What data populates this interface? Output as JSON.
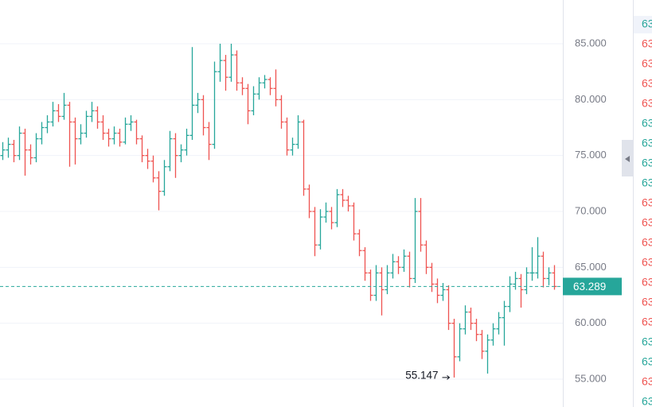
{
  "chart_data": {
    "type": "ohlc",
    "up_color": "#26a69a",
    "down_color": "#ef5350",
    "grid": true,
    "ylim": [
      52.51,
      88.91
    ],
    "yticks": [
      {
        "value": 55,
        "label": "55.000"
      },
      {
        "value": 60,
        "label": "60.000"
      },
      {
        "value": 65,
        "label": "65.000"
      },
      {
        "value": 70,
        "label": "70.000"
      },
      {
        "value": 75,
        "label": "75.000"
      },
      {
        "value": 80,
        "label": "80.000"
      },
      {
        "value": 85,
        "label": "85.000"
      }
    ],
    "bars": [
      [
        75.0,
        76.2,
        74.6,
        75.5
      ],
      [
        75.5,
        76.6,
        74.8,
        76.0
      ],
      [
        76.0,
        76.4,
        74.4,
        75.0
      ],
      [
        75.0,
        77.6,
        74.6,
        77.0
      ],
      [
        77.0,
        77.4,
        73.2,
        75.5
      ],
      [
        75.5,
        76.0,
        74.2,
        74.8
      ],
      [
        74.8,
        77.0,
        74.4,
        76.5
      ],
      [
        76.5,
        78.0,
        76.0,
        77.5
      ],
      [
        77.5,
        78.6,
        77.0,
        78.0
      ],
      [
        78.0,
        79.8,
        77.6,
        79.0
      ],
      [
        79.0,
        79.6,
        78.0,
        78.5
      ],
      [
        78.5,
        80.6,
        78.2,
        79.5
      ],
      [
        79.5,
        79.8,
        74.0,
        78.0
      ],
      [
        78.0,
        78.4,
        74.2,
        76.5
      ],
      [
        76.5,
        77.8,
        76.0,
        77.0
      ],
      [
        77.0,
        79.0,
        76.6,
        78.5
      ],
      [
        78.5,
        79.8,
        78.0,
        79.0
      ],
      [
        79.0,
        79.4,
        77.4,
        78.0
      ],
      [
        78.0,
        78.6,
        76.4,
        77.0
      ],
      [
        77.0,
        77.4,
        75.8,
        76.5
      ],
      [
        76.5,
        77.6,
        76.0,
        77.0
      ],
      [
        77.0,
        77.4,
        75.8,
        76.2
      ],
      [
        76.2,
        78.4,
        76.0,
        77.8
      ],
      [
        77.8,
        78.6,
        77.2,
        78.0
      ],
      [
        78.0,
        78.2,
        76.0,
        76.5
      ],
      [
        76.5,
        76.8,
        74.4,
        75.0
      ],
      [
        75.0,
        75.6,
        73.8,
        74.5
      ],
      [
        74.5,
        75.0,
        72.6,
        73.0
      ],
      [
        73.0,
        73.6,
        70.1,
        71.8
      ],
      [
        71.8,
        74.6,
        71.4,
        74.0
      ],
      [
        74.0,
        77.2,
        73.6,
        76.5
      ],
      [
        76.5,
        77.0,
        73.0,
        75.0
      ],
      [
        75.0,
        76.0,
        74.4,
        75.5
      ],
      [
        75.5,
        77.4,
        75.0,
        76.8
      ],
      [
        76.8,
        84.7,
        76.4,
        79.5
      ],
      [
        79.5,
        80.6,
        78.8,
        80.0
      ],
      [
        80.0,
        80.4,
        76.8,
        77.5
      ],
      [
        77.5,
        78.0,
        74.6,
        76.0
      ],
      [
        76.0,
        83.4,
        75.6,
        82.5
      ],
      [
        82.5,
        85.0,
        81.6,
        83.5
      ],
      [
        83.5,
        84.0,
        80.8,
        82.0
      ],
      [
        82.0,
        85.0,
        81.6,
        84.0
      ],
      [
        84.0,
        84.4,
        80.8,
        81.5
      ],
      [
        81.5,
        82.0,
        80.4,
        81.0
      ],
      [
        81.0,
        81.4,
        77.8,
        79.0
      ],
      [
        79.0,
        81.2,
        78.6,
        80.5
      ],
      [
        80.5,
        82.0,
        80.0,
        81.5
      ],
      [
        81.5,
        82.2,
        81.0,
        81.8
      ],
      [
        81.8,
        82.0,
        80.4,
        81.0
      ],
      [
        81.0,
        82.7,
        79.4,
        80.0
      ],
      [
        80.0,
        80.4,
        77.4,
        78.0
      ],
      [
        78.0,
        78.4,
        75.0,
        75.5
      ],
      [
        75.5,
        76.6,
        75.0,
        76.0
      ],
      [
        76.0,
        78.6,
        75.6,
        78.0
      ],
      [
        78.0,
        78.2,
        71.4,
        72.0
      ],
      [
        72.0,
        72.4,
        69.4,
        70.0
      ],
      [
        70.0,
        70.4,
        66.0,
        67.0
      ],
      [
        67.0,
        70.2,
        66.6,
        69.5
      ],
      [
        69.5,
        70.8,
        69.0,
        70.0
      ],
      [
        70.0,
        70.4,
        68.4,
        69.0
      ],
      [
        69.0,
        72.0,
        68.6,
        71.5
      ],
      [
        71.5,
        72.0,
        70.4,
        71.0
      ],
      [
        71.0,
        71.4,
        70.0,
        70.5
      ],
      [
        70.5,
        70.8,
        67.4,
        68.0
      ],
      [
        68.0,
        68.4,
        66.0,
        66.5
      ],
      [
        66.5,
        66.8,
        63.8,
        64.5
      ],
      [
        64.5,
        64.8,
        62.0,
        62.5
      ],
      [
        62.5,
        65.2,
        62.0,
        64.5
      ],
      [
        64.5,
        65.0,
        60.7,
        63.0
      ],
      [
        63.0,
        65.2,
        62.6,
        64.5
      ],
      [
        64.5,
        66.2,
        64.0,
        65.5
      ],
      [
        65.5,
        66.0,
        64.4,
        65.0
      ],
      [
        65.0,
        66.6,
        64.6,
        66.0
      ],
      [
        66.0,
        66.4,
        63.2,
        64.0
      ],
      [
        64.0,
        71.2,
        63.6,
        70.0
      ],
      [
        70.0,
        71.2,
        66.4,
        67.0
      ],
      [
        67.0,
        67.4,
        64.4,
        65.0
      ],
      [
        65.0,
        65.4,
        62.8,
        63.5
      ],
      [
        63.5,
        64.0,
        61.8,
        62.5
      ],
      [
        62.5,
        63.6,
        62.0,
        63.0
      ],
      [
        63.0,
        63.4,
        59.4,
        60.0
      ],
      [
        60.0,
        60.4,
        55.147,
        57.0
      ],
      [
        57.0,
        60.0,
        56.6,
        59.5
      ],
      [
        59.5,
        61.6,
        59.0,
        61.0
      ],
      [
        61.0,
        61.4,
        59.4,
        60.0
      ],
      [
        60.0,
        60.4,
        58.4,
        59.0
      ],
      [
        59.0,
        59.4,
        56.8,
        57.5
      ],
      [
        57.5,
        59.0,
        55.5,
        58.5
      ],
      [
        58.5,
        60.0,
        58.0,
        59.5
      ],
      [
        59.5,
        61.0,
        59.0,
        60.5
      ],
      [
        60.5,
        62.0,
        58.0,
        61.5
      ],
      [
        61.5,
        64.2,
        61.0,
        63.5
      ],
      [
        63.5,
        64.6,
        63.0,
        64.0
      ],
      [
        64.0,
        64.4,
        61.4,
        63.0
      ],
      [
        63.0,
        65.0,
        62.6,
        64.5
      ],
      [
        64.5,
        66.8,
        63.8,
        64.5
      ],
      [
        64.5,
        67.7,
        64.0,
        66.0
      ],
      [
        66.0,
        66.4,
        63.2,
        64.0
      ],
      [
        64.0,
        65.0,
        63.4,
        64.5
      ],
      [
        64.5,
        65.2,
        63.0,
        63.289
      ]
    ]
  },
  "side_panel": {
    "items": [
      {
        "text": "63",
        "color": "#26a69a"
      },
      {
        "text": "63",
        "color": "#ef5350"
      },
      {
        "text": "63",
        "color": "#ef5350"
      },
      {
        "text": "63",
        "color": "#ef5350"
      },
      {
        "text": "63",
        "color": "#ef5350"
      },
      {
        "text": "63",
        "color": "#26a69a"
      },
      {
        "text": "63",
        "color": "#26a69a"
      },
      {
        "text": "63",
        "color": "#26a69a"
      },
      {
        "text": "63",
        "color": "#26a69a"
      },
      {
        "text": "63",
        "color": "#ef5350"
      },
      {
        "text": "63",
        "color": "#ef5350"
      },
      {
        "text": "63",
        "color": "#ef5350"
      },
      {
        "text": "63",
        "color": "#ef5350"
      },
      {
        "text": "63",
        "color": "#ef5350"
      },
      {
        "text": "63",
        "color": "#ef5350"
      },
      {
        "text": "63",
        "color": "#ef5350"
      },
      {
        "text": "63",
        "color": "#26a69a"
      },
      {
        "text": "63",
        "color": "#26a69a"
      },
      {
        "text": "63",
        "color": "#ef5350"
      },
      {
        "text": "63",
        "color": "#26a69a"
      }
    ]
  }
}
